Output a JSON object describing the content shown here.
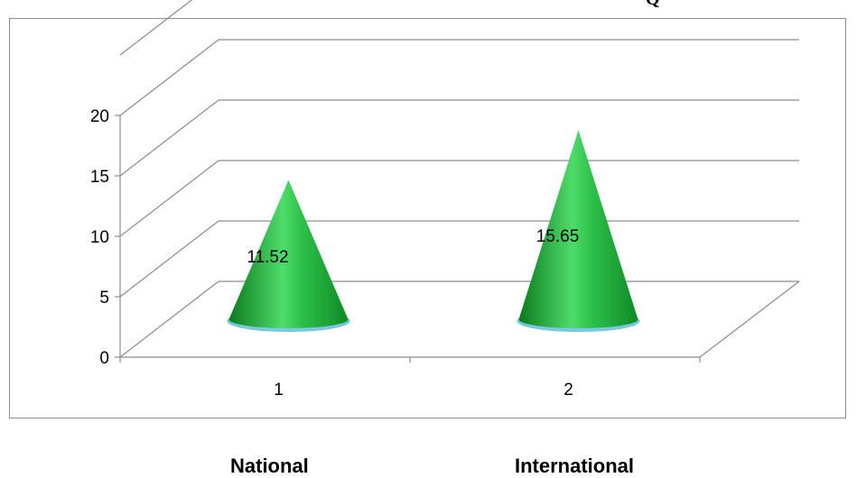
{
  "chart_data": {
    "type": "bar",
    "style": "3d-cone",
    "title_fragment": "Q",
    "categories": [
      "1",
      "2"
    ],
    "values": [
      11.52,
      15.65
    ],
    "data_labels": [
      "11.52",
      "15.65"
    ],
    "y_ticks": [
      "0",
      "5",
      "10",
      "15",
      "20"
    ],
    "ylim": [
      0,
      25
    ],
    "grid": true,
    "bar_color": "#1fa33a",
    "group_labels": [
      "National",
      "International"
    ]
  }
}
